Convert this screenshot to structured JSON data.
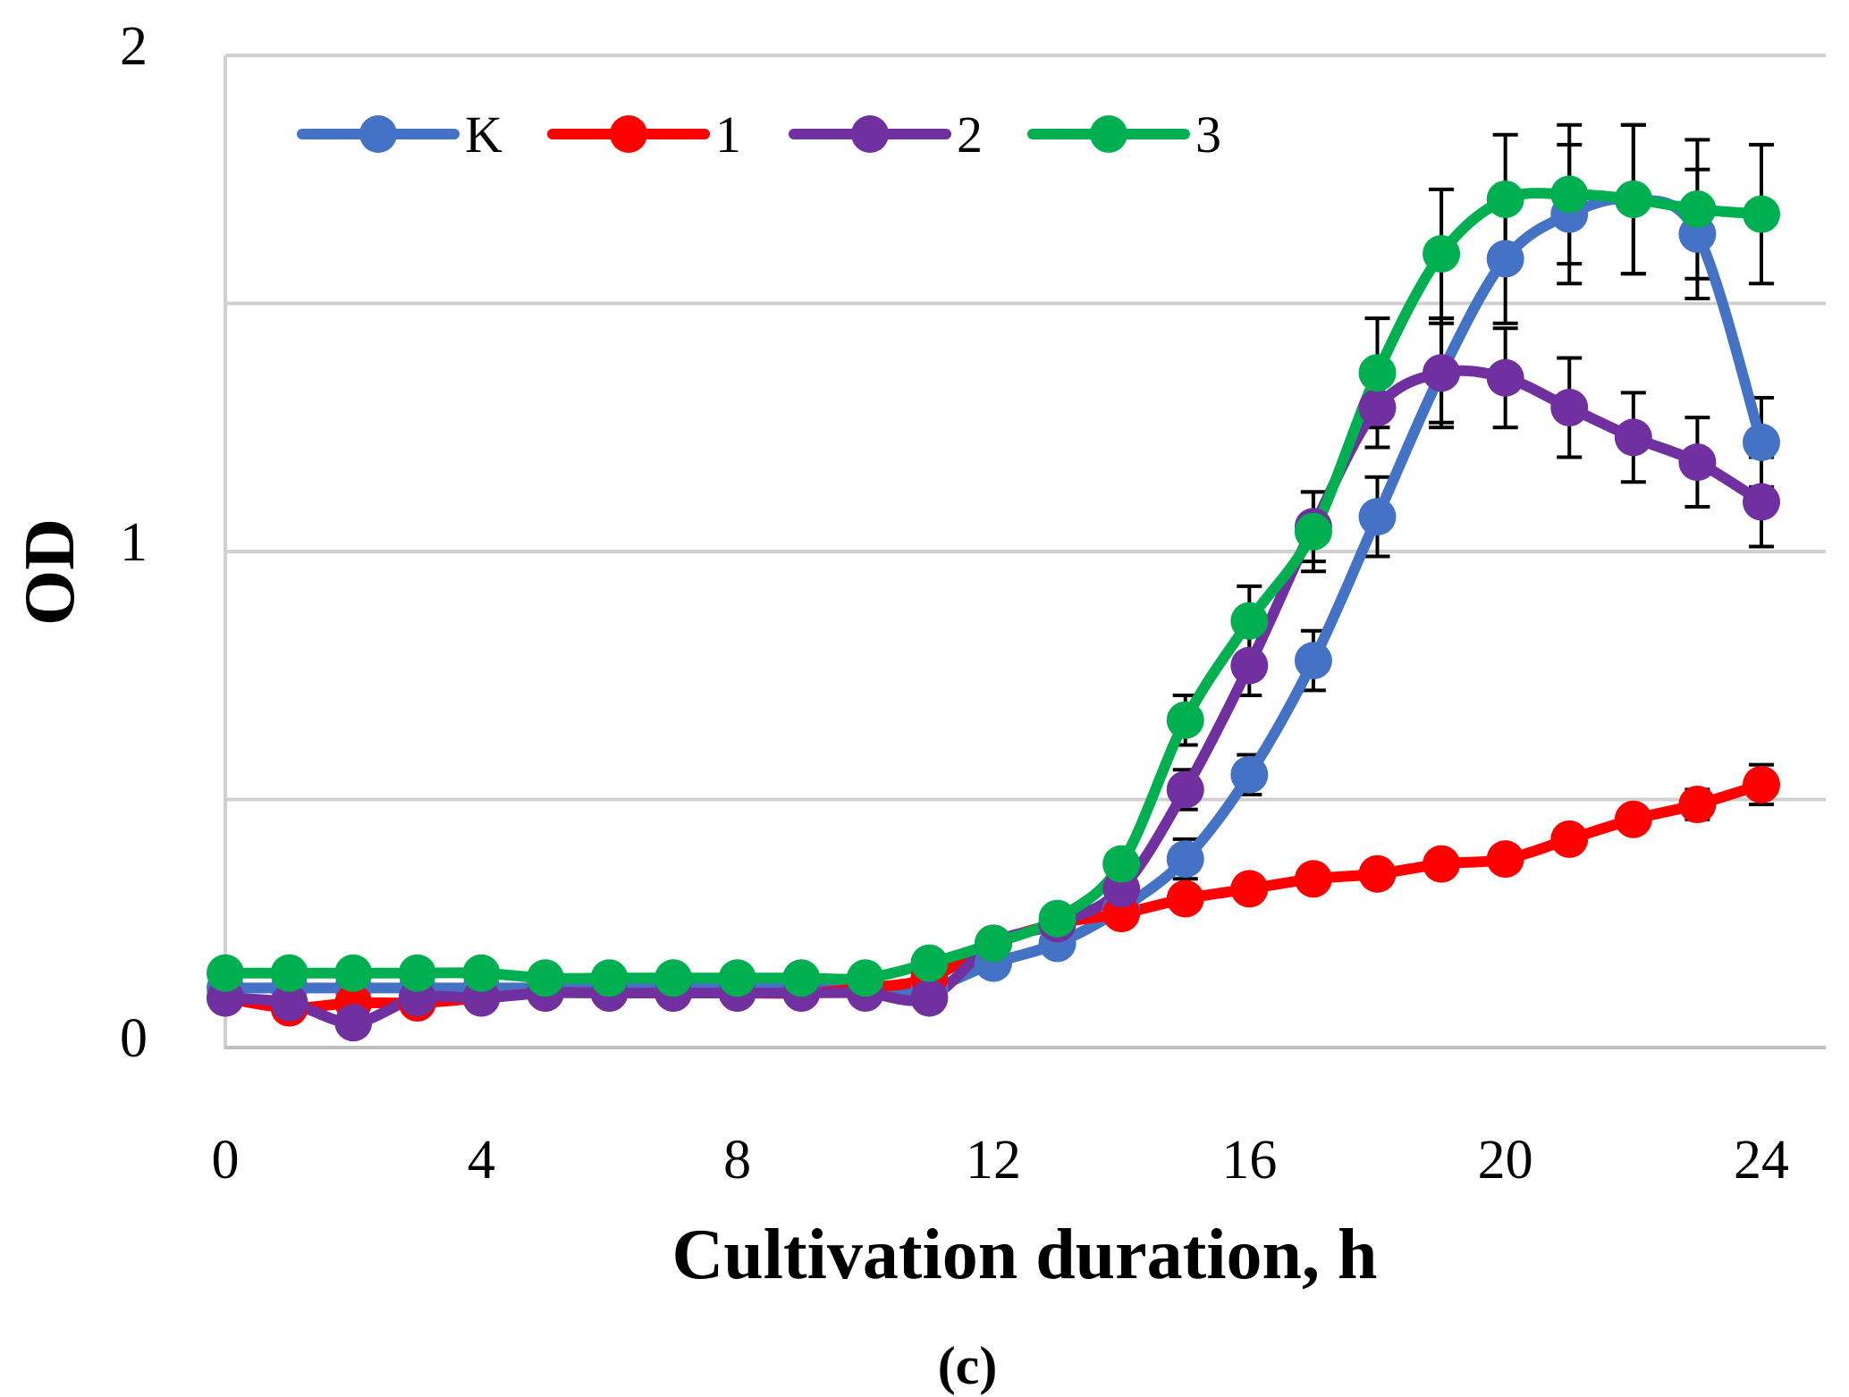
{
  "chart_data": {
    "type": "line",
    "title": "",
    "xlabel": "Cultivation duration, h",
    "ylabel": "OD",
    "caption": "(c)",
    "xlim": [
      0,
      24
    ],
    "ylim": [
      0,
      2
    ],
    "x_ticks": [
      0,
      4,
      8,
      12,
      16,
      20,
      24
    ],
    "y_ticks": [
      0,
      1,
      2
    ],
    "y_gridlines": [
      0.5,
      1,
      1.5,
      2
    ],
    "legend_position": "top-left",
    "x": [
      0,
      1,
      2,
      3,
      4,
      5,
      6,
      7,
      8,
      9,
      10,
      11,
      12,
      13,
      14,
      15,
      16,
      17,
      18,
      19,
      20,
      21,
      22,
      23,
      24
    ],
    "series": [
      {
        "name": "K",
        "color": "#4472C4",
        "values": [
          0.12,
          0.12,
          0.12,
          0.12,
          0.12,
          0.12,
          0.12,
          0.12,
          0.12,
          0.12,
          0.12,
          0.12,
          0.17,
          0.21,
          0.28,
          0.38,
          0.55,
          0.78,
          1.07,
          1.36,
          1.59,
          1.68,
          1.71,
          1.64,
          1.22
        ],
        "errors": [
          0,
          0,
          0,
          0,
          0,
          0,
          0,
          0,
          0,
          0,
          0,
          0,
          0,
          0,
          0,
          0.04,
          0.04,
          0.06,
          0.08,
          0.11,
          0.13,
          0.14,
          0.15,
          0.13,
          0.09
        ]
      },
      {
        "name": "1",
        "color": "#FF0000",
        "values": [
          0.1,
          0.08,
          0.09,
          0.09,
          0.1,
          0.11,
          0.11,
          0.11,
          0.11,
          0.11,
          0.12,
          0.14,
          0.21,
          0.25,
          0.27,
          0.3,
          0.32,
          0.34,
          0.35,
          0.37,
          0.38,
          0.42,
          0.46,
          0.49,
          0.53
        ],
        "errors": [
          0,
          0,
          0,
          0,
          0,
          0,
          0,
          0,
          0,
          0,
          0,
          0,
          0,
          0,
          0,
          0,
          0,
          0,
          0,
          0,
          0,
          0,
          0,
          0.03,
          0.04
        ]
      },
      {
        "name": "2",
        "color": "#7030A0",
        "values": [
          0.1,
          0.09,
          0.05,
          0.1,
          0.1,
          0.11,
          0.11,
          0.11,
          0.11,
          0.11,
          0.11,
          0.1,
          0.21,
          0.25,
          0.32,
          0.52,
          0.77,
          1.05,
          1.29,
          1.36,
          1.35,
          1.29,
          1.23,
          1.18,
          1.1
        ],
        "errors": [
          0,
          0,
          0,
          0,
          0,
          0,
          0,
          0,
          0,
          0,
          0,
          0,
          0,
          0,
          0,
          0.04,
          0.06,
          0.07,
          0.08,
          0.1,
          0.1,
          0.1,
          0.09,
          0.09,
          0.09
        ]
      },
      {
        "name": "3",
        "color": "#00B050",
        "values": [
          0.15,
          0.15,
          0.15,
          0.15,
          0.15,
          0.14,
          0.14,
          0.14,
          0.14,
          0.14,
          0.14,
          0.17,
          0.21,
          0.26,
          0.37,
          0.66,
          0.86,
          1.04,
          1.36,
          1.6,
          1.71,
          1.72,
          1.71,
          1.69,
          1.68
        ],
        "errors": [
          0,
          0,
          0,
          0,
          0,
          0,
          0,
          0,
          0,
          0,
          0,
          0,
          0,
          0,
          0,
          0.05,
          0.07,
          0.08,
          0.11,
          0.13,
          0.13,
          0.14,
          0.15,
          0.14,
          0.14
        ]
      }
    ]
  }
}
